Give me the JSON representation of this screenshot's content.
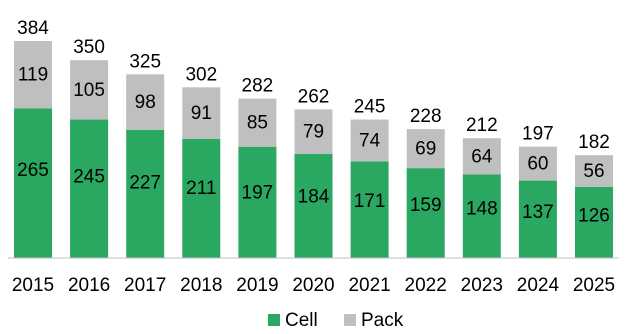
{
  "chart_data": {
    "type": "bar",
    "stacked": true,
    "categories": [
      "2015",
      "2016",
      "2017",
      "2018",
      "2019",
      "2020",
      "2021",
      "2022",
      "2023",
      "2024",
      "2025"
    ],
    "series": [
      {
        "name": "Cell",
        "color": "#2aa862",
        "values": [
          265,
          245,
          227,
          211,
          197,
          184,
          171,
          159,
          148,
          137,
          126
        ]
      },
      {
        "name": "Pack",
        "color": "#bfbfbf",
        "values": [
          119,
          105,
          98,
          91,
          85,
          79,
          74,
          69,
          64,
          60,
          56
        ]
      }
    ],
    "totals": [
      384,
      350,
      325,
      302,
      282,
      262,
      245,
      228,
      212,
      197,
      182
    ],
    "title": "",
    "xlabel": "",
    "ylabel": "",
    "ylim": [
      0,
      384
    ],
    "grid": false,
    "legend": "bottom-center"
  }
}
